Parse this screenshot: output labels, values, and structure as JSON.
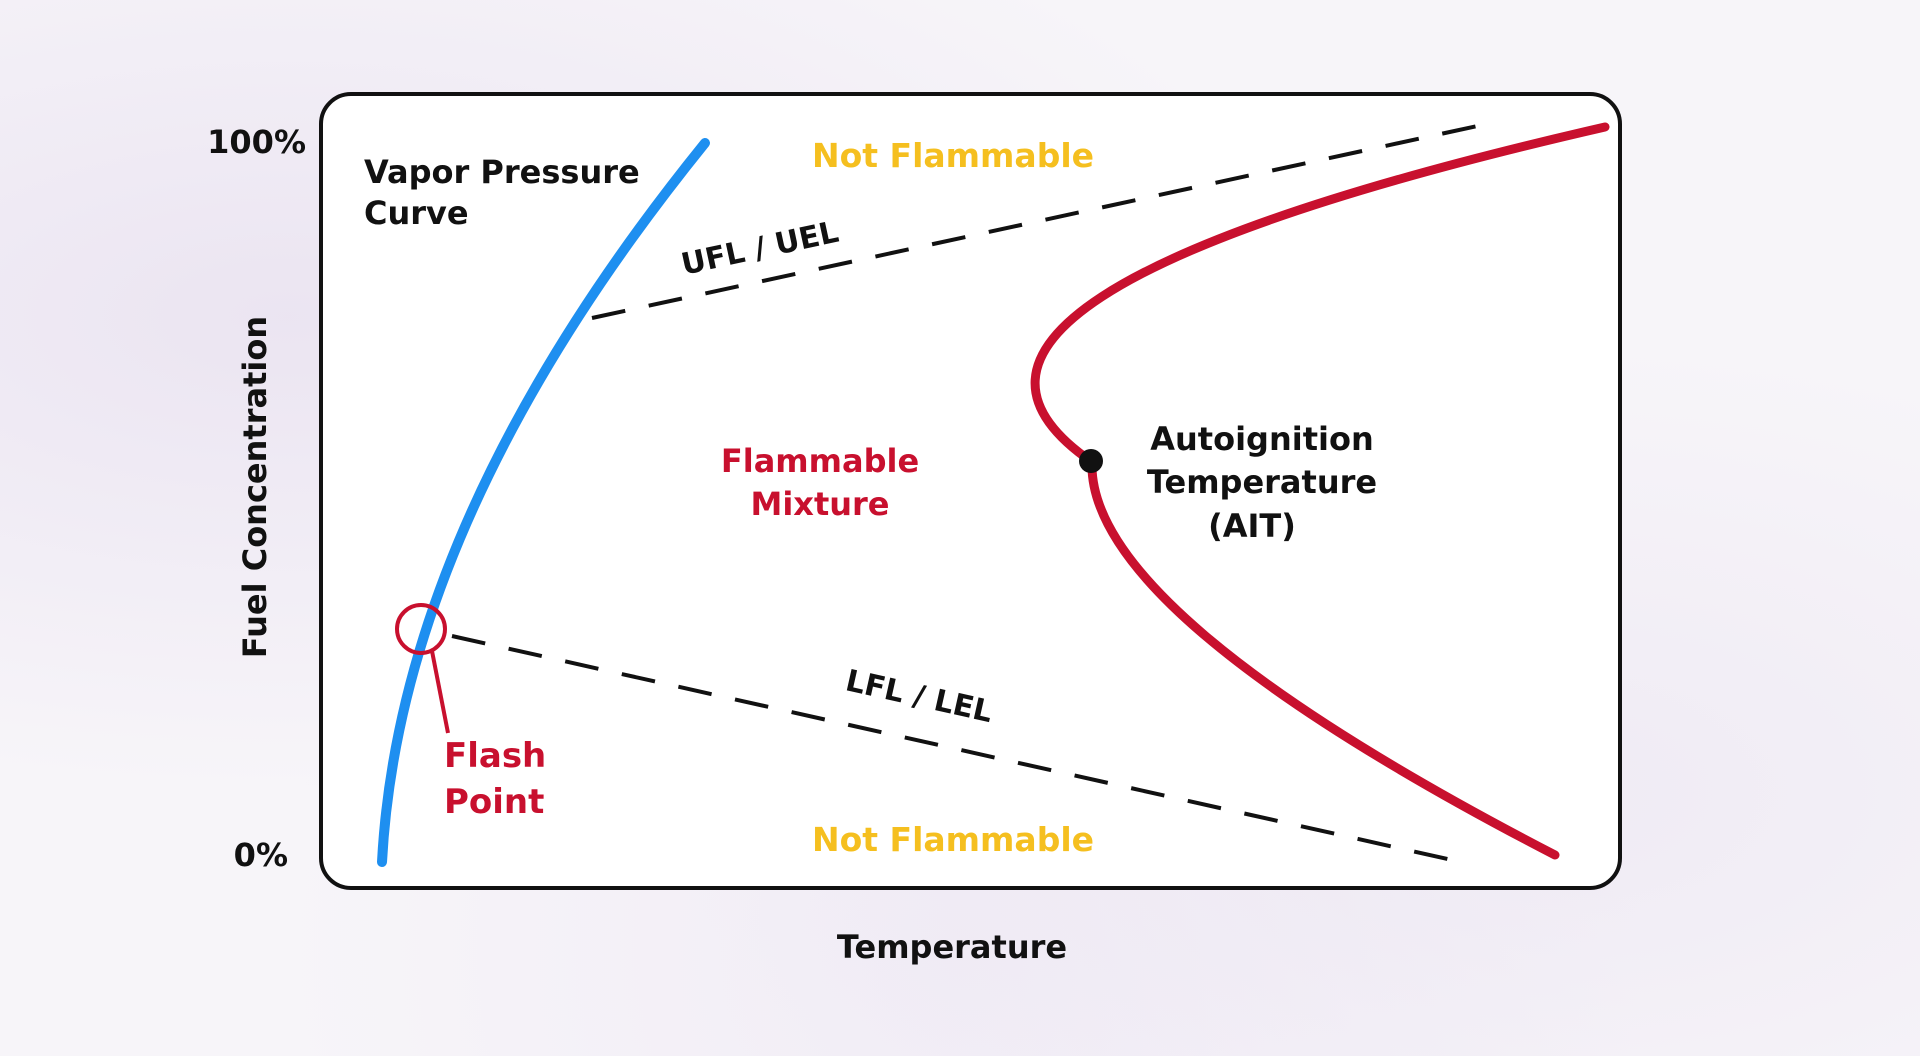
{
  "axes": {
    "y_top_tick": "100%",
    "y_bottom_tick": "0%",
    "y_label": "Fuel Concentration",
    "x_label": "Temperature"
  },
  "labels": {
    "vapor_pressure_line1": "Vapor Pressure",
    "vapor_pressure_line2": "Curve",
    "not_flammable_top": "Not Flammable",
    "not_flammable_bottom": "Not Flammable",
    "ufl": "UFL / UEL",
    "lfl": "LFL / LEL",
    "flammable_line1": "Flammable",
    "flammable_line2": "Mixture",
    "ait_line1": "Autoignition",
    "ait_line2": "Temperature",
    "ait_line3": "(AIT)",
    "flash_line1": "Flash",
    "flash_line2": "Point"
  },
  "colors": {
    "vapor_curve": "#1e8ff0",
    "ait_curve": "#c8102e",
    "flammable_text": "#c8102e",
    "not_flammable_text": "#f5bf1f",
    "dash_line": "#111111",
    "frame": "#111111",
    "text": "#111111"
  }
}
